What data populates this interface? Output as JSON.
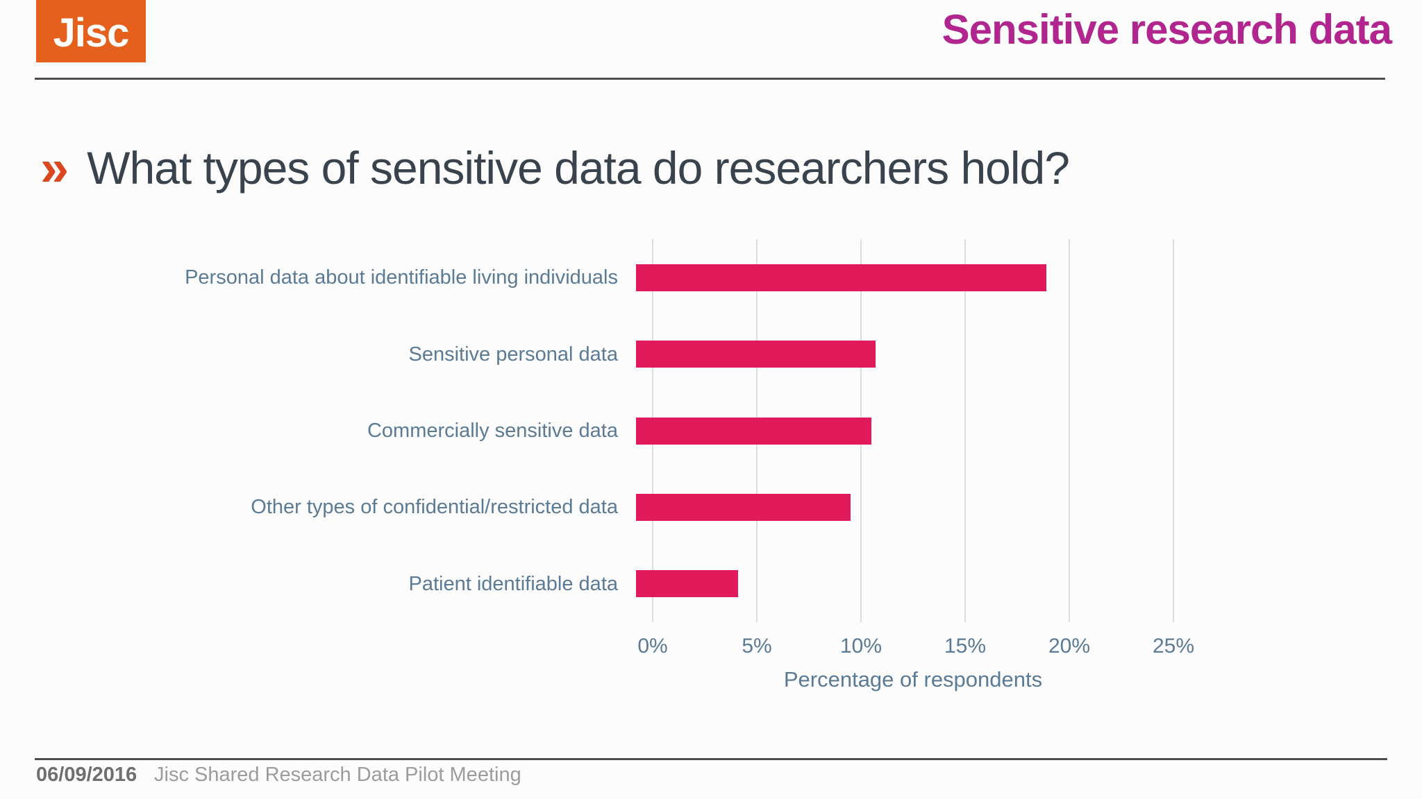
{
  "slide": {
    "logo_text": "Jisc",
    "title": "Sensitive research data",
    "heading_bullet": "»",
    "heading": "What types of sensitive data do researchers hold?",
    "footer": {
      "date": "06/09/2016",
      "event": "Jisc Shared Research Data Pilot Meeting"
    }
  },
  "colors": {
    "logo_orange": "#E5601C",
    "bullet_orange": "#D9481F",
    "title_magenta": "#B0268E",
    "heading_charcoal": "#39434D",
    "axis_label_blue": "#5B7A94",
    "bar_pink": "#E11A5C",
    "gridline_gray": "#DDDDDF",
    "rule_gray": "#4E4E4E"
  },
  "chart_data": {
    "type": "bar",
    "orientation": "horizontal",
    "title": "",
    "categories": [
      "Personal data about identifiable living individuals",
      "Sensitive personal data",
      "Commercially sensitive data",
      "Other types of confidential/restricted data",
      "Patient identifiable data"
    ],
    "values": [
      19.7,
      11.5,
      11.3,
      10.3,
      4.9
    ],
    "xlabel": "Percentage of respondents",
    "ylabel": "",
    "xticks": [
      "0%",
      "5%",
      "10%",
      "15%",
      "20%",
      "25%"
    ],
    "xlim": [
      0,
      25
    ],
    "grid": true,
    "legend": false,
    "bar_color": "#E11A5C"
  }
}
